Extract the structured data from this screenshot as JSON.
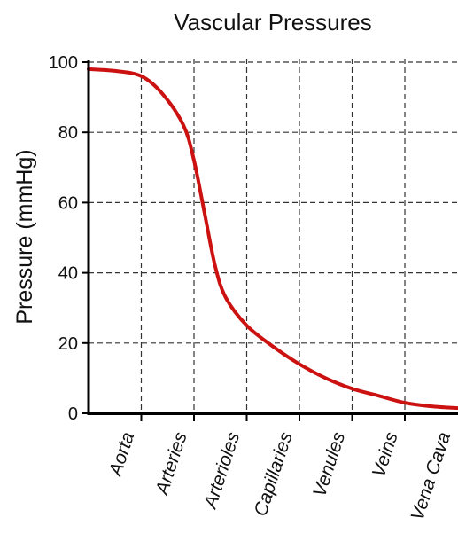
{
  "chart_data": {
    "type": "line",
    "title": "Vascular Pressures",
    "ylabel": "Pressure (mmHg)",
    "xlabel": "",
    "ylim": [
      0,
      100
    ],
    "yticks": [
      0,
      20,
      40,
      60,
      80,
      100
    ],
    "categories": [
      "Aorta",
      "Arteries",
      "Arterioles",
      "Capillaries",
      "Venules",
      "Veins",
      "Vena Cava"
    ],
    "grid": true,
    "series": [
      {
        "color": "#cc1111",
        "points": [
          {
            "x": 0.0,
            "y": 98
          },
          {
            "x": 0.5,
            "y": 97.5
          },
          {
            "x": 1.0,
            "y": 96
          },
          {
            "x": 1.4,
            "y": 91
          },
          {
            "x": 1.8,
            "y": 82
          },
          {
            "x": 2.0,
            "y": 72
          },
          {
            "x": 2.2,
            "y": 57
          },
          {
            "x": 2.4,
            "y": 42
          },
          {
            "x": 2.6,
            "y": 33
          },
          {
            "x": 3.0,
            "y": 25
          },
          {
            "x": 3.5,
            "y": 19
          },
          {
            "x": 4.0,
            "y": 14
          },
          {
            "x": 4.5,
            "y": 10
          },
          {
            "x": 5.0,
            "y": 7
          },
          {
            "x": 5.5,
            "y": 5
          },
          {
            "x": 6.0,
            "y": 3
          },
          {
            "x": 6.5,
            "y": 2
          },
          {
            "x": 7.0,
            "y": 1.5
          }
        ]
      }
    ]
  }
}
